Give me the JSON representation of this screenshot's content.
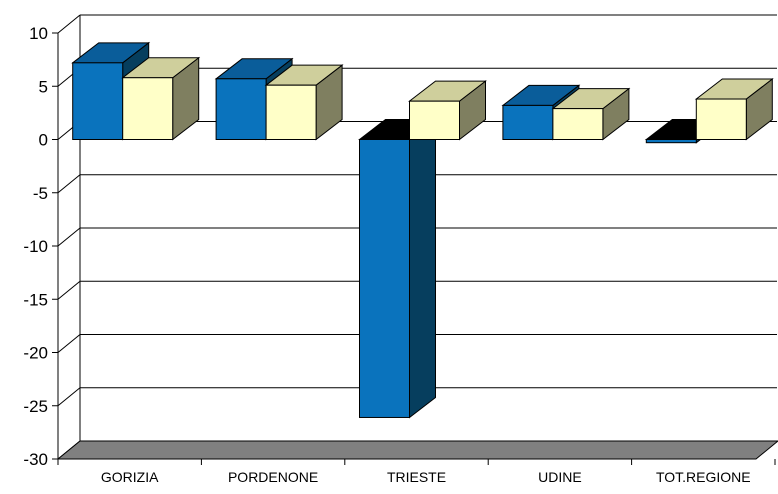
{
  "chart_data": {
    "type": "bar",
    "title": "",
    "xlabel": "",
    "ylabel": "",
    "ylim": [
      -30,
      10
    ],
    "yticks": [
      10,
      5,
      0,
      -5,
      -10,
      -15,
      -20,
      -25,
      -30
    ],
    "ytick_labels": [
      "10",
      "5",
      "0",
      "-5",
      "-10",
      "-15",
      "-20",
      "-25",
      "-30"
    ],
    "categories": [
      "GORIZIA",
      "PORDENONE",
      "TRIESTE",
      "UDINE",
      "TOT.REGIONE"
    ],
    "grid": true,
    "legend": "none",
    "style": "3d-clustered-column",
    "series": [
      {
        "values": [
          7.2,
          5.7,
          -26.1,
          3.2,
          -0.3
        ],
        "colors": {
          "front": "#0a73bd",
          "top": "#0a5d9a",
          "side": "#063e5e"
        }
      },
      {
        "values": [
          5.8,
          5.1,
          3.6,
          2.9,
          3.8
        ],
        "colors": {
          "front": "#ffffc8",
          "top": "#cfcf9c",
          "side": "#7f7f60"
        }
      }
    ],
    "colors": {
      "floor": "#808080",
      "gridline": "#000000",
      "axis": "#000000"
    }
  }
}
